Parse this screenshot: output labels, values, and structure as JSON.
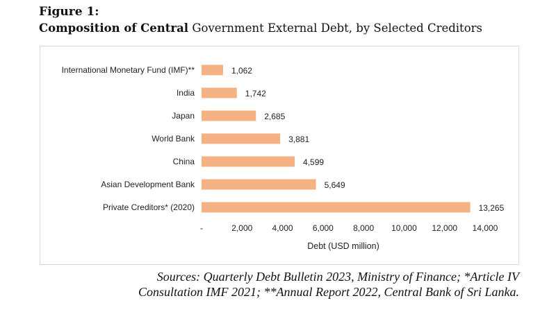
{
  "figure": {
    "label": "Figure 1:",
    "title_bold": "Composition of Central",
    "title_rest": " Government External Debt, by Selected Creditors"
  },
  "chart_data": {
    "type": "bar",
    "orientation": "horizontal",
    "categories": [
      "International Monetary Fund (IMF)**",
      "India",
      "Japan",
      "World Bank",
      "China",
      "Asian Development Bank",
      "Private Creditors* (2020)"
    ],
    "values": [
      1062,
      1742,
      2685,
      3881,
      4599,
      5649,
      13265
    ],
    "value_labels": [
      "1,062",
      "1,742",
      "2,685",
      "3,881",
      "4,599",
      "5,649",
      "13,265"
    ],
    "xlabel": "Debt (USD million)",
    "ylabel": "",
    "xlim": [
      0,
      14000
    ],
    "x_ticks": [
      0,
      2000,
      4000,
      6000,
      8000,
      10000,
      12000,
      14000
    ],
    "x_tick_labels": [
      "-",
      "2,000",
      "4,000",
      "6,000",
      "8,000",
      "10,000",
      "12,000",
      "14,000"
    ],
    "bar_color": "#f4b183",
    "grid": false,
    "legend": "none"
  },
  "sources": {
    "line1": "Sources: Quarterly Debt Bulletin 2023, Ministry of Finance; *Article IV",
    "line2": "Consultation IMF 2021; **Annual Report 2022, Central Bank of Sri Lanka."
  }
}
